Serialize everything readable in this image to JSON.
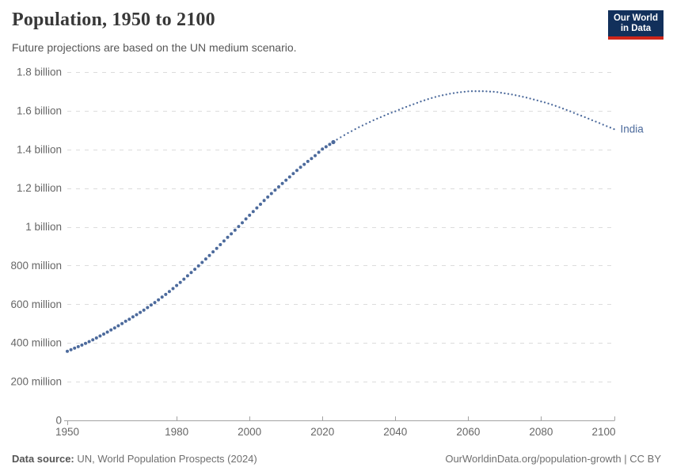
{
  "header": {
    "title": "Population, 1950 to 2100",
    "subtitle": "Future projections are based on the UN medium scenario.",
    "logo_line1": "Our World",
    "logo_line2": "in Data"
  },
  "footer": {
    "source_label": "Data source:",
    "source_text": "UN, World Population Prospects (2024)",
    "credit": "OurWorldinData.org/population-growth | CC BY"
  },
  "colors": {
    "series": "#4C6A9C",
    "grid": "#dcdcdc",
    "axis": "#a3a3a3",
    "tick_label": "#666666",
    "title": "#383838",
    "logo_bg": "#12305b",
    "logo_red": "#ce261a"
  },
  "chart_data": {
    "type": "line",
    "title": "Population, 1950 to 2100",
    "subtitle": "Future projections are based on the UN medium scenario.",
    "entity_label": "India",
    "unit": "people (millions)",
    "xlabel": "",
    "ylabel": "",
    "xlim": [
      1950,
      2100
    ],
    "ylim": [
      0,
      1800
    ],
    "grid": true,
    "legend_position": "end-of-line",
    "x_ticks": [
      1950,
      1980,
      2000,
      2020,
      2040,
      2060,
      2080,
      2100
    ],
    "y_ticks": [
      {
        "v": 0,
        "label": "0"
      },
      {
        "v": 200,
        "label": "200 million"
      },
      {
        "v": 400,
        "label": "400 million"
      },
      {
        "v": 600,
        "label": "600 million"
      },
      {
        "v": 800,
        "label": "800 million"
      },
      {
        "v": 1000,
        "label": "1 billion"
      },
      {
        "v": 1200,
        "label": "1.2 billion"
      },
      {
        "v": 1400,
        "label": "1.4 billion"
      },
      {
        "v": 1600,
        "label": "1.6 billion"
      },
      {
        "v": 1800,
        "label": "1.8 billion"
      }
    ],
    "series": [
      {
        "name": "India (historical estimates)",
        "style": "dense-dots",
        "dot_radius": 2.0,
        "points": [
          [
            1950,
            357
          ],
          [
            1951,
            365
          ],
          [
            1952,
            373
          ],
          [
            1953,
            381
          ],
          [
            1954,
            389
          ],
          [
            1955,
            398
          ],
          [
            1956,
            407
          ],
          [
            1957,
            416
          ],
          [
            1958,
            426
          ],
          [
            1959,
            436
          ],
          [
            1960,
            446
          ],
          [
            1961,
            456
          ],
          [
            1962,
            467
          ],
          [
            1963,
            478
          ],
          [
            1964,
            489
          ],
          [
            1965,
            500
          ],
          [
            1966,
            512
          ],
          [
            1967,
            523
          ],
          [
            1968,
            535
          ],
          [
            1969,
            546
          ],
          [
            1970,
            558
          ],
          [
            1971,
            570
          ],
          [
            1972,
            583
          ],
          [
            1973,
            596
          ],
          [
            1974,
            609
          ],
          [
            1975,
            623
          ],
          [
            1976,
            637
          ],
          [
            1977,
            651
          ],
          [
            1978,
            666
          ],
          [
            1979,
            681
          ],
          [
            1980,
            697
          ],
          [
            1981,
            713
          ],
          [
            1982,
            730
          ],
          [
            1983,
            747
          ],
          [
            1984,
            764
          ],
          [
            1985,
            781
          ],
          [
            1986,
            798
          ],
          [
            1987,
            816
          ],
          [
            1988,
            834
          ],
          [
            1989,
            852
          ],
          [
            1990,
            871
          ],
          [
            1991,
            889
          ],
          [
            1992,
            908
          ],
          [
            1993,
            927
          ],
          [
            1994,
            946
          ],
          [
            1995,
            964
          ],
          [
            1996,
            983
          ],
          [
            1997,
            1002
          ],
          [
            1998,
            1021
          ],
          [
            1999,
            1041
          ],
          [
            2000,
            1060
          ],
          [
            2001,
            1079
          ],
          [
            2002,
            1098
          ],
          [
            2003,
            1117
          ],
          [
            2004,
            1136
          ],
          [
            2005,
            1154
          ],
          [
            2006,
            1172
          ],
          [
            2007,
            1190
          ],
          [
            2008,
            1207
          ],
          [
            2009,
            1224
          ],
          [
            2010,
            1241
          ],
          [
            2011,
            1258
          ],
          [
            2012,
            1275
          ],
          [
            2013,
            1292
          ],
          [
            2014,
            1308
          ],
          [
            2015,
            1323
          ],
          [
            2016,
            1338
          ],
          [
            2017,
            1353
          ],
          [
            2018,
            1368
          ],
          [
            2019,
            1385
          ],
          [
            2020,
            1402
          ],
          [
            2021,
            1414
          ],
          [
            2022,
            1426
          ],
          [
            2023,
            1438
          ]
        ]
      },
      {
        "name": "India (UN medium projection)",
        "style": "sparse-dots",
        "dot_radius": 1.15,
        "points": [
          [
            2024,
            1451
          ],
          [
            2025,
            1463
          ],
          [
            2026,
            1474
          ],
          [
            2027,
            1485
          ],
          [
            2028,
            1495
          ],
          [
            2029,
            1505
          ],
          [
            2030,
            1515
          ],
          [
            2031,
            1524
          ],
          [
            2032,
            1533
          ],
          [
            2033,
            1542
          ],
          [
            2034,
            1551
          ],
          [
            2035,
            1559
          ],
          [
            2036,
            1567
          ],
          [
            2037,
            1575
          ],
          [
            2038,
            1583
          ],
          [
            2039,
            1590
          ],
          [
            2040,
            1597
          ],
          [
            2041,
            1605
          ],
          [
            2042,
            1613
          ],
          [
            2043,
            1620
          ],
          [
            2044,
            1627
          ],
          [
            2045,
            1634
          ],
          [
            2046,
            1641
          ],
          [
            2047,
            1648
          ],
          [
            2048,
            1654
          ],
          [
            2049,
            1660
          ],
          [
            2050,
            1666
          ],
          [
            2051,
            1671
          ],
          [
            2052,
            1676
          ],
          [
            2053,
            1680
          ],
          [
            2054,
            1684
          ],
          [
            2055,
            1688
          ],
          [
            2056,
            1691
          ],
          [
            2057,
            1694
          ],
          [
            2058,
            1696
          ],
          [
            2059,
            1698
          ],
          [
            2060,
            1700
          ],
          [
            2061,
            1701
          ],
          [
            2062,
            1701
          ],
          [
            2063,
            1701
          ],
          [
            2064,
            1701
          ],
          [
            2065,
            1700
          ],
          [
            2066,
            1699
          ],
          [
            2067,
            1698
          ],
          [
            2068,
            1696
          ],
          [
            2069,
            1693
          ],
          [
            2070,
            1690
          ],
          [
            2071,
            1687
          ],
          [
            2072,
            1684
          ],
          [
            2073,
            1680
          ],
          [
            2074,
            1676
          ],
          [
            2075,
            1672
          ],
          [
            2076,
            1668
          ],
          [
            2077,
            1663
          ],
          [
            2078,
            1658
          ],
          [
            2079,
            1653
          ],
          [
            2080,
            1648
          ],
          [
            2081,
            1643
          ],
          [
            2082,
            1637
          ],
          [
            2083,
            1631
          ],
          [
            2084,
            1625
          ],
          [
            2085,
            1618
          ],
          [
            2086,
            1611
          ],
          [
            2087,
            1604
          ],
          [
            2088,
            1597
          ],
          [
            2089,
            1589
          ],
          [
            2090,
            1581
          ],
          [
            2091,
            1574
          ],
          [
            2092,
            1567
          ],
          [
            2093,
            1559
          ],
          [
            2094,
            1551
          ],
          [
            2095,
            1544
          ],
          [
            2096,
            1536
          ],
          [
            2097,
            1528
          ],
          [
            2098,
            1520
          ],
          [
            2099,
            1513
          ],
          [
            2100,
            1505
          ]
        ]
      }
    ]
  }
}
